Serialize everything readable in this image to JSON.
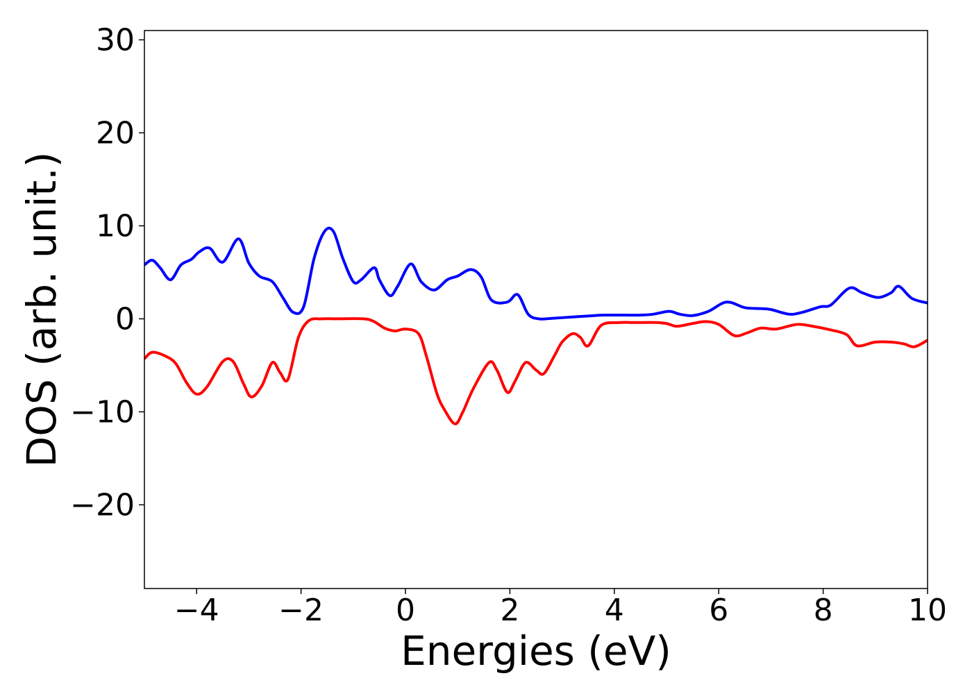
{
  "chart_data": {
    "type": "line",
    "title": "",
    "xlabel": "Energies (eV)",
    "ylabel": "DOS (arb. unit.)",
    "xlim": [
      -5,
      10
    ],
    "ylim": [
      -29,
      31
    ],
    "xticks": [
      -4,
      -2,
      0,
      2,
      4,
      6,
      8,
      10
    ],
    "xtick_labels": [
      "−4",
      "−2",
      "0",
      "2",
      "4",
      "6",
      "8",
      "10"
    ],
    "yticks": [
      -20,
      -10,
      0,
      10,
      20,
      30
    ],
    "ytick_labels": [
      "−20",
      "−10",
      "0",
      "10",
      "20",
      "30"
    ],
    "grid": false,
    "legend": false,
    "series": [
      {
        "color": "#0000ff",
        "x": [
          -5.0,
          -4.85,
          -4.7,
          -4.5,
          -4.3,
          -4.1,
          -3.95,
          -3.75,
          -3.5,
          -3.2,
          -3.0,
          -2.8,
          -2.55,
          -2.35,
          -2.15,
          -1.95,
          -1.75,
          -1.55,
          -1.38,
          -1.2,
          -1.0,
          -0.85,
          -0.6,
          -0.5,
          -0.3,
          -0.15,
          0.1,
          0.3,
          0.55,
          0.8,
          1.0,
          1.25,
          1.45,
          1.65,
          1.95,
          2.15,
          2.35,
          2.55,
          2.8,
          3.2,
          3.5,
          3.8,
          4.2,
          4.5,
          4.75,
          5.05,
          5.25,
          5.5,
          5.8,
          6.15,
          6.5,
          6.8,
          7.0,
          7.35,
          7.6,
          7.95,
          8.15,
          8.5,
          8.75,
          9.05,
          9.3,
          9.45,
          9.7,
          10.0
        ],
        "y": [
          5.8,
          6.3,
          5.5,
          4.2,
          5.8,
          6.4,
          7.2,
          7.6,
          6.1,
          8.6,
          6.0,
          4.6,
          4.0,
          2.3,
          0.7,
          1.3,
          6.5,
          9.4,
          9.4,
          6.5,
          4.0,
          4.2,
          5.5,
          4.2,
          2.5,
          3.5,
          5.9,
          4.0,
          3.1,
          4.2,
          4.6,
          5.3,
          4.5,
          2.0,
          1.8,
          2.6,
          0.5,
          0.0,
          0.05,
          0.2,
          0.3,
          0.4,
          0.4,
          0.4,
          0.5,
          0.8,
          0.5,
          0.35,
          0.8,
          1.8,
          1.2,
          1.1,
          1.0,
          0.5,
          0.7,
          1.3,
          1.5,
          3.3,
          2.8,
          2.3,
          2.8,
          3.5,
          2.2,
          1.7
        ]
      },
      {
        "color": "#ff0000",
        "x": [
          -5.0,
          -4.85,
          -4.6,
          -4.4,
          -4.2,
          -4.0,
          -3.8,
          -3.5,
          -3.3,
          -3.1,
          -2.95,
          -2.75,
          -2.55,
          -2.4,
          -2.25,
          -2.05,
          -1.85,
          -1.6,
          -1.3,
          -0.8,
          -0.6,
          -0.4,
          -0.2,
          0.0,
          0.25,
          0.4,
          0.6,
          0.75,
          0.95,
          1.1,
          1.3,
          1.6,
          1.75,
          1.95,
          2.1,
          2.3,
          2.5,
          2.65,
          2.85,
          3.0,
          3.2,
          3.35,
          3.5,
          3.75,
          4.1,
          4.4,
          4.8,
          5.0,
          5.2,
          5.5,
          5.75,
          6.0,
          6.3,
          6.55,
          6.8,
          7.1,
          7.5,
          7.8,
          8.15,
          8.45,
          8.65,
          9.0,
          9.3,
          9.55,
          9.75,
          10.0
        ],
        "y": [
          -4.3,
          -3.6,
          -4.0,
          -4.8,
          -6.8,
          -8.1,
          -7.3,
          -4.6,
          -4.6,
          -7.0,
          -8.4,
          -7.2,
          -4.7,
          -5.8,
          -6.5,
          -2.0,
          -0.2,
          0.0,
          0.0,
          0.0,
          -0.3,
          -1.0,
          -1.3,
          -1.1,
          -1.6,
          -4.0,
          -8.0,
          -9.8,
          -11.3,
          -10.0,
          -7.5,
          -4.7,
          -5.5,
          -7.9,
          -6.7,
          -4.7,
          -5.5,
          -5.9,
          -4.0,
          -2.5,
          -1.6,
          -2.0,
          -2.9,
          -0.7,
          -0.4,
          -0.4,
          -0.4,
          -0.5,
          -0.8,
          -0.5,
          -0.3,
          -0.6,
          -1.8,
          -1.5,
          -1.0,
          -1.1,
          -0.6,
          -0.8,
          -1.2,
          -1.7,
          -2.9,
          -2.5,
          -2.5,
          -2.7,
          -3.0,
          -2.3
        ]
      }
    ]
  }
}
